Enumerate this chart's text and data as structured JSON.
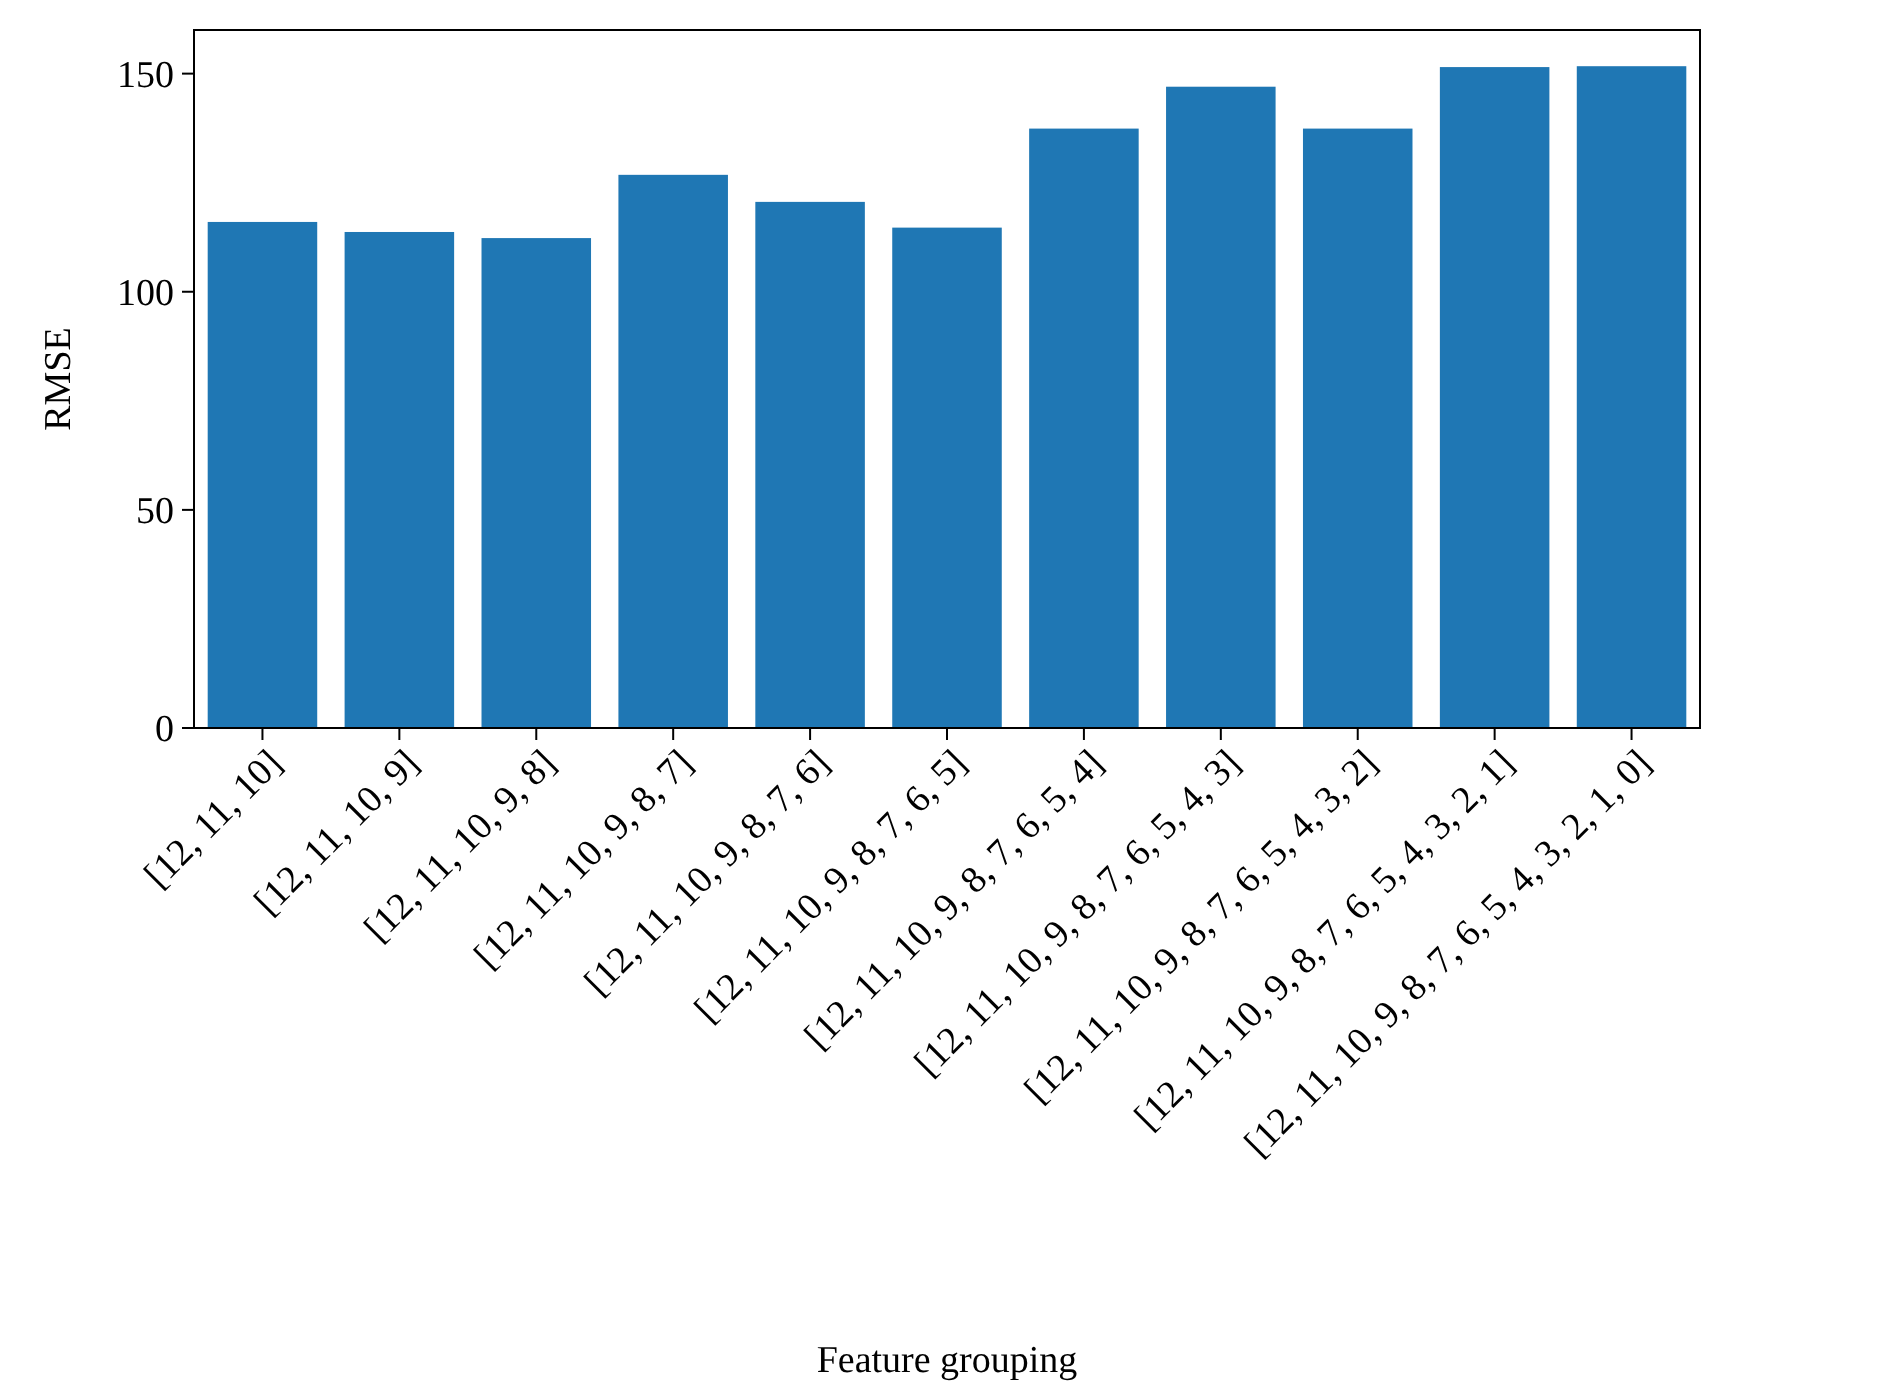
{
  "chart_data": {
    "type": "bar",
    "xlabel": "Feature grouping",
    "ylabel": "RMSE",
    "categories": [
      "[12, 11, 10]",
      "[12, 11, 10, 9]",
      "[12, 11, 10, 9, 8]",
      "[12, 11, 10, 9, 8, 7]",
      "[12, 11, 10, 9, 8, 7, 6]",
      "[12, 11, 10, 9, 8, 7, 6, 5]",
      "[12, 11, 10, 9, 8, 7, 6, 5, 4]",
      "[12, 11, 10, 9, 8, 7, 6, 5, 4, 3]",
      "[12, 11, 10, 9, 8, 7, 6, 5, 4, 3, 2]",
      "[12, 11, 10, 9, 8, 7, 6, 5, 4, 3, 2, 1]",
      "[12, 11, 10, 9, 8, 7, 6, 5, 4, 3, 2, 1, 0]"
    ],
    "values": [
      116,
      113.7,
      112.3,
      126.8,
      120.6,
      114.7,
      137.4,
      147,
      137.4,
      151.5,
      151.7
    ],
    "color": "#1f77b4",
    "ylim": [
      0,
      160
    ],
    "yticks": [
      0,
      50,
      100,
      150
    ],
    "grid": false
  }
}
